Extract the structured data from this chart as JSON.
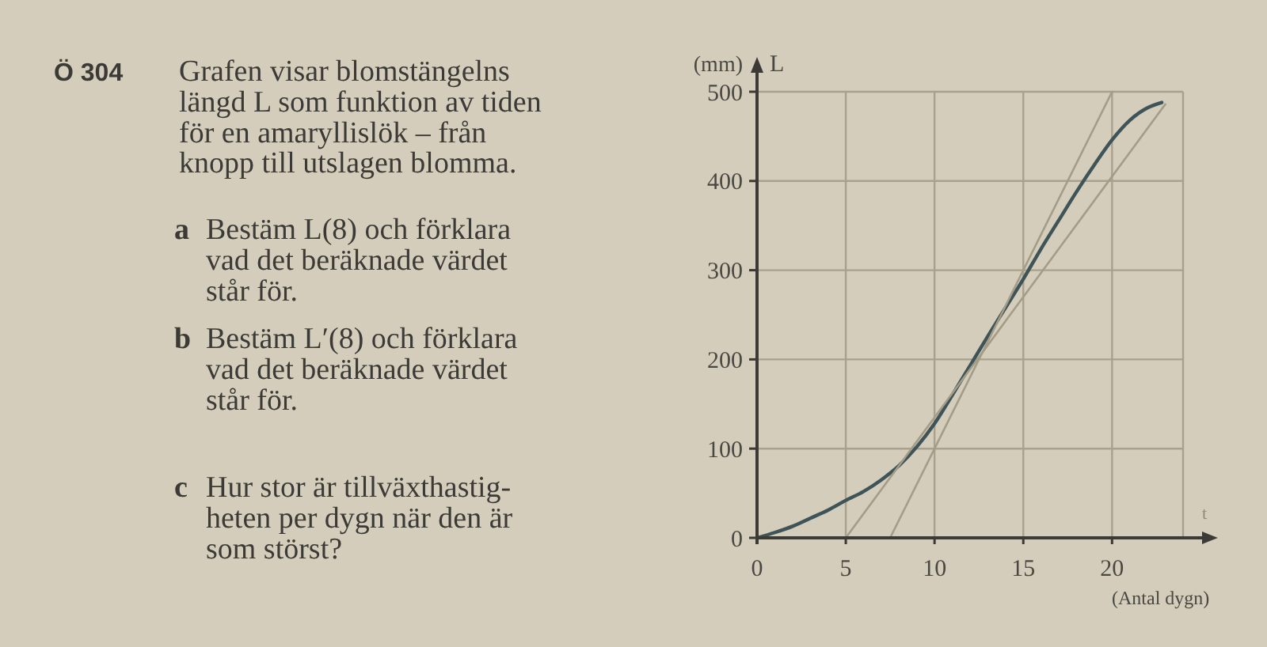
{
  "chart_data": {
    "type": "line",
    "xlabel": "(Antal dygn)",
    "ylabel": "L",
    "x": [
      0,
      1,
      2,
      3,
      4,
      5,
      6,
      7,
      8,
      9,
      10,
      11,
      12,
      13,
      14,
      15,
      16,
      17,
      18,
      19,
      20,
      21,
      22,
      22.8
    ],
    "series": [
      {
        "color": "#3f5459",
        "values": [
          0,
          6,
          13,
          22,
          31,
          42,
          52,
          65,
          81,
          102,
          128,
          160,
          193,
          226,
          258,
          290,
          324,
          356,
          388,
          418,
          446,
          468,
          482,
          488
        ]
      },
      {
        "color": "#a39c86",
        "x": [
          5,
          23
        ],
        "values": [
          0,
          486
        ]
      },
      {
        "color": "#a39c86",
        "x": [
          7.5,
          20
        ],
        "values": [
          0,
          500
        ]
      }
    ],
    "xlim": [
      0,
      24
    ],
    "ylim": [
      0,
      500
    ],
    "xticks": [
      0,
      5,
      10,
      15,
      20
    ],
    "yticks": [
      0,
      100,
      200,
      300,
      400,
      500
    ],
    "grid": true,
    "annotations": [
      "Ö 304",
      "Grafen visar blomstängelns\nlängd L som funktion av tiden\nför en amaryllislök – från\nknopp till utslagen blomma.",
      "a",
      "Bestäm L(8) och förklara\nvad det beräknade värdet\nstår för.",
      "b",
      "Bestäm L′(8) och förklara\nvad det beräknade värdet\nstår för.",
      "c",
      "Hur stor är tillväxthastig-\nheten per dygn när den är\nsom störst?",
      "(mm)",
      "t"
    ]
  }
}
